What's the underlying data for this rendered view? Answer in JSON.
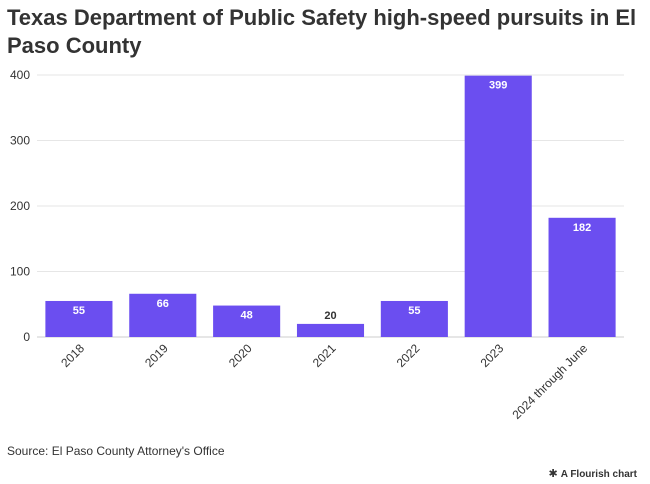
{
  "header": {
    "title": "Texas Department of Public Safety high-speed pursuits in El Paso County"
  },
  "chart_data": {
    "type": "bar",
    "title": "Texas Department of Public Safety high-speed pursuits in El Paso County",
    "categories": [
      "2018",
      "2019",
      "2020",
      "2021",
      "2022",
      "2023",
      "2024 through June"
    ],
    "values": [
      55,
      66,
      48,
      20,
      55,
      399,
      182
    ],
    "ylim": [
      0,
      400
    ],
    "yticks": [
      0,
      100,
      200,
      300,
      400
    ],
    "xlabel": "",
    "ylabel": "",
    "grid": true,
    "bar_color": "#6b4ef0",
    "label_inside_color": "#ffffff",
    "label_outside_color": "#333333"
  },
  "footer": {
    "source": "Source: El Paso County Attorney's Office",
    "credit": "A Flourish chart",
    "credit_icon": "flourish-logo-icon"
  }
}
